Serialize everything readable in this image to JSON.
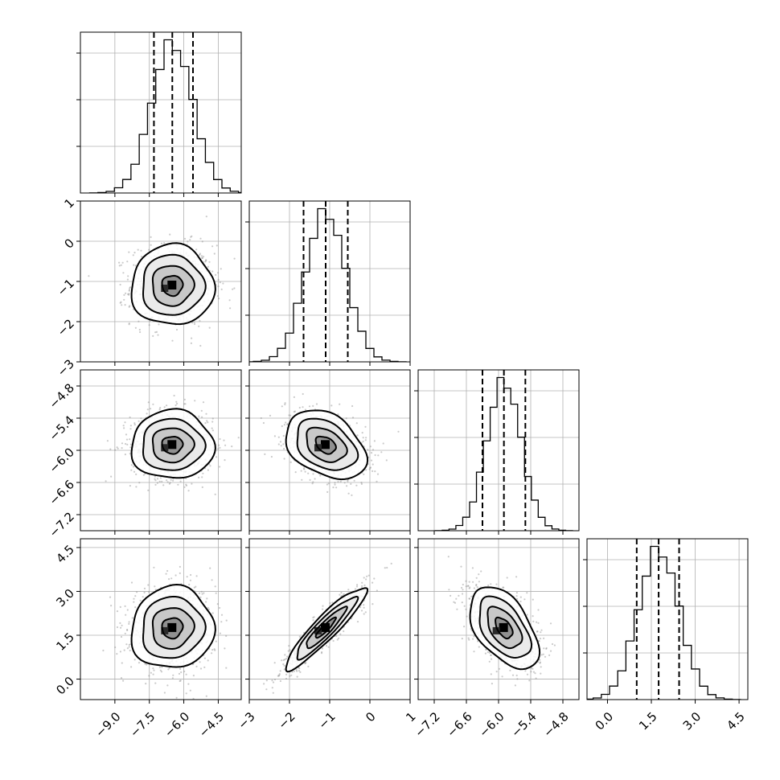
{
  "chart_data": {
    "type": "corner",
    "parameters": [
      {
        "mean": -6.5,
        "sd": 0.9,
        "axis_min": -10.5,
        "axis_max": -3.5,
        "ticks": [
          -9.0,
          -7.5,
          -6.0,
          -4.5
        ],
        "tick_labels": [
          "−9.0",
          "−7.5",
          "−6.0",
          "−4.5"
        ],
        "quantiles": [
          -7.3,
          -6.5,
          -5.6
        ]
      },
      {
        "mean": -1.1,
        "sd": 0.5,
        "axis_min": -3.0,
        "axis_max": 1.0,
        "ticks": [
          -3,
          -2,
          -1,
          0,
          1
        ],
        "tick_labels": [
          "−3",
          "−2",
          "−1",
          "0",
          "1"
        ],
        "quantiles": [
          -1.65,
          -1.1,
          -0.55
        ]
      },
      {
        "mean": -5.9,
        "sd": 0.32,
        "axis_min": -7.5,
        "axis_max": -4.5,
        "ticks": [
          -7.2,
          -6.6,
          -6.0,
          -5.4,
          -4.8
        ],
        "tick_labels": [
          "−7.2",
          "−6.6",
          "−6.0",
          "−5.4",
          "−4.8"
        ],
        "quantiles": [
          -6.3,
          -5.9,
          -5.5
        ]
      },
      {
        "mean": 1.75,
        "sd": 0.7,
        "axis_min": -0.7,
        "axis_max": 4.8,
        "ticks": [
          0.0,
          1.5,
          3.0,
          4.5
        ],
        "tick_labels": [
          "0.0",
          "1.5",
          "3.0",
          "4.5"
        ],
        "quantiles": [
          1.0,
          1.75,
          2.45
        ]
      }
    ],
    "correlations": [
      [
        1.0,
        0.0,
        0.0,
        0.05
      ],
      [
        0.0,
        1.0,
        -0.35,
        0.92
      ],
      [
        0.0,
        -0.35,
        1.0,
        -0.5
      ],
      [
        0.05,
        0.92,
        -0.5,
        1.0
      ]
    ],
    "histogram_bins": 20,
    "contour_levels_sigma": [
      0.5,
      1.0,
      1.5,
      2.0
    ],
    "grid": true,
    "colors": {
      "points": "#8c8c8c",
      "lines": "#000000",
      "grid": "#b0b0b0"
    }
  }
}
